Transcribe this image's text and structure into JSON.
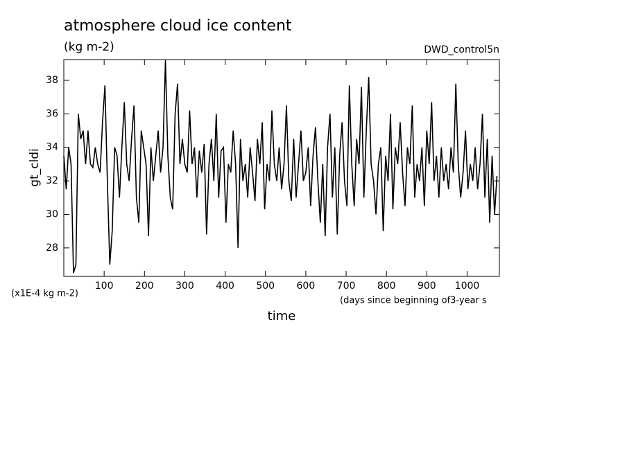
{
  "chart_data": {
    "type": "line",
    "title": "atmosphere cloud ice content",
    "subtitle": "(kg m-2)",
    "dataset": "DWD_control5n",
    "ylabel": "gt_cldi",
    "yunits": "(x1E-4 kg m-2)",
    "xlabel": "time",
    "xunits": "(days since beginning of3-year s",
    "xlim": [
      0,
      1080
    ],
    "ylim": [
      26.3,
      39.24
    ],
    "xticks": [
      100,
      200,
      300,
      400,
      500,
      600,
      700,
      800,
      900,
      1000
    ],
    "yticks": [
      28,
      30,
      32,
      34,
      36,
      38
    ],
    "series": [
      {
        "name": "gt_cldi",
        "color": "#000000",
        "x": [
          0,
          6,
          12,
          18,
          24,
          30,
          36,
          42,
          48,
          54,
          60,
          66,
          72,
          78,
          84,
          90,
          96,
          102,
          108,
          114,
          120,
          126,
          132,
          138,
          144,
          150,
          156,
          162,
          168,
          174,
          180,
          186,
          192,
          198,
          204,
          210,
          216,
          222,
          228,
          234,
          240,
          246,
          252,
          258,
          264,
          270,
          276,
          282,
          288,
          294,
          300,
          306,
          312,
          318,
          324,
          330,
          336,
          342,
          348,
          354,
          360,
          366,
          372,
          378,
          384,
          390,
          396,
          402,
          408,
          414,
          420,
          426,
          432,
          438,
          444,
          450,
          456,
          462,
          468,
          474,
          480,
          486,
          492,
          498,
          504,
          510,
          516,
          522,
          528,
          534,
          540,
          546,
          552,
          558,
          564,
          570,
          576,
          582,
          588,
          594,
          600,
          606,
          612,
          618,
          624,
          630,
          636,
          642,
          648,
          654,
          660,
          666,
          672,
          678,
          684,
          690,
          696,
          702,
          708,
          714,
          720,
          726,
          732,
          738,
          744,
          750,
          756,
          762,
          768,
          774,
          780,
          786,
          792,
          798,
          804,
          810,
          816,
          822,
          828,
          834,
          840,
          846,
          852,
          858,
          864,
          870,
          876,
          882,
          888,
          894,
          900,
          906,
          912,
          918,
          924,
          930,
          936,
          942,
          948,
          954,
          960,
          966,
          972,
          978,
          984,
          990,
          996,
          1002,
          1008,
          1014,
          1020,
          1026,
          1032,
          1038,
          1044,
          1050,
          1056,
          1062,
          1068,
          1074
        ],
        "values": [
          33.5,
          31.5,
          34,
          33,
          26.5,
          27,
          36,
          34.5,
          35,
          33,
          35,
          33,
          32.8,
          34,
          33,
          32.5,
          35.5,
          37.7,
          32,
          27,
          29,
          34,
          33.5,
          31,
          34,
          36.7,
          33,
          32,
          34.5,
          36.5,
          31,
          29.5,
          35,
          34,
          33,
          28.7,
          34,
          32,
          33.5,
          35,
          32.5,
          34,
          39.2,
          33.5,
          31,
          30.3,
          36,
          37.8,
          33,
          34.5,
          33,
          32.5,
          36.2,
          33,
          34,
          31,
          33.8,
          32.5,
          34.2,
          28.8,
          33,
          34.5,
          32,
          36,
          31,
          33.8,
          34,
          29.5,
          33,
          32.5,
          35,
          33,
          28,
          34.5,
          32,
          33,
          31,
          34,
          32.5,
          30.8,
          34.5,
          33,
          35.5,
          30.3,
          33,
          32,
          36.2,
          33,
          32,
          34,
          31.5,
          33,
          36.5,
          32,
          30.8,
          34.5,
          31,
          33,
          35,
          32,
          32.5,
          34,
          30.5,
          33.5,
          35.2,
          32,
          29.5,
          33,
          28.7,
          34,
          36,
          31,
          34,
          28.8,
          33.5,
          35.5,
          32,
          30.5,
          37.7,
          33,
          30.5,
          34.5,
          33,
          37.6,
          31,
          35,
          38.2,
          33,
          32,
          30,
          33,
          34,
          29,
          33.5,
          32,
          36,
          30.3,
          34,
          33,
          35.5,
          32.5,
          30.5,
          34,
          33,
          36.5,
          31,
          33,
          32,
          34,
          30.5,
          35,
          33,
          36.7,
          32,
          33.5,
          31,
          34,
          32,
          33,
          31.5,
          34,
          32.5,
          37.8,
          33,
          31,
          32.5,
          35,
          31.5,
          33,
          32,
          34,
          31.5,
          33,
          36,
          31,
          34.5,
          29.5,
          33.5,
          30,
          32.3
        ]
      }
    ]
  }
}
